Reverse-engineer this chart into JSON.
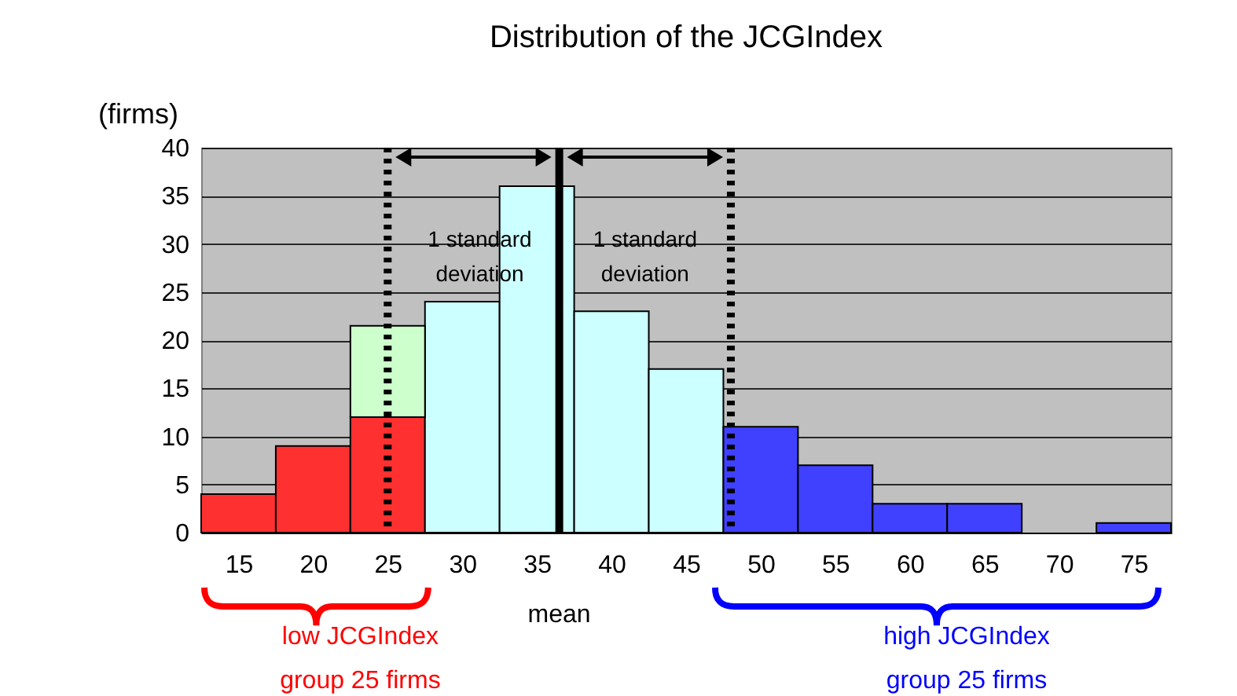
{
  "chart_data": {
    "type": "bar",
    "title": "Distribution of the JCGIndex",
    "ylabel": "(firms)",
    "x": [
      15,
      20,
      25,
      30,
      35,
      40,
      45,
      50,
      55,
      60,
      65,
      70,
      75
    ],
    "stacked": true,
    "series": [
      {
        "colors": [
          "#ff3030",
          "#ff3030",
          "#ff3030",
          "#ccffff",
          "#ccffff",
          "#ccffff",
          "#ccffff",
          "#4040ff",
          "#4040ff",
          "#4040ff",
          "#4040ff",
          "#4040ff",
          "#4040ff"
        ],
        "values": [
          4,
          9,
          12,
          24,
          36,
          23,
          17,
          11,
          7,
          3,
          3,
          0,
          1
        ]
      },
      {
        "color": "#ccffcc",
        "values": [
          null,
          null,
          9.5,
          null,
          null,
          null,
          null,
          null,
          null,
          null,
          null,
          null,
          null
        ]
      }
    ],
    "xlim": [
      12.5,
      77.5
    ],
    "xticks": [
      15,
      20,
      25,
      30,
      35,
      40,
      45,
      50,
      55,
      60,
      65,
      70,
      75
    ],
    "ylim": [
      0,
      40
    ],
    "yticks": [
      0,
      5,
      10,
      15,
      20,
      25,
      30,
      35,
      40
    ],
    "grid": "y",
    "ref_lines": [
      {
        "axis": "x",
        "value": 25,
        "line_style": "dotted"
      },
      {
        "axis": "x",
        "value": 36.5,
        "line_style": "solid"
      },
      {
        "axis": "x",
        "value": 48,
        "line_style": "dotted"
      }
    ],
    "annotations": [
      "1 standard\ndeviation",
      "1 standard\ndeviation",
      "low JCGIndex\ngroup 25 firms",
      "mean",
      "high JCGIndex\ngroup 25 firms"
    ]
  }
}
